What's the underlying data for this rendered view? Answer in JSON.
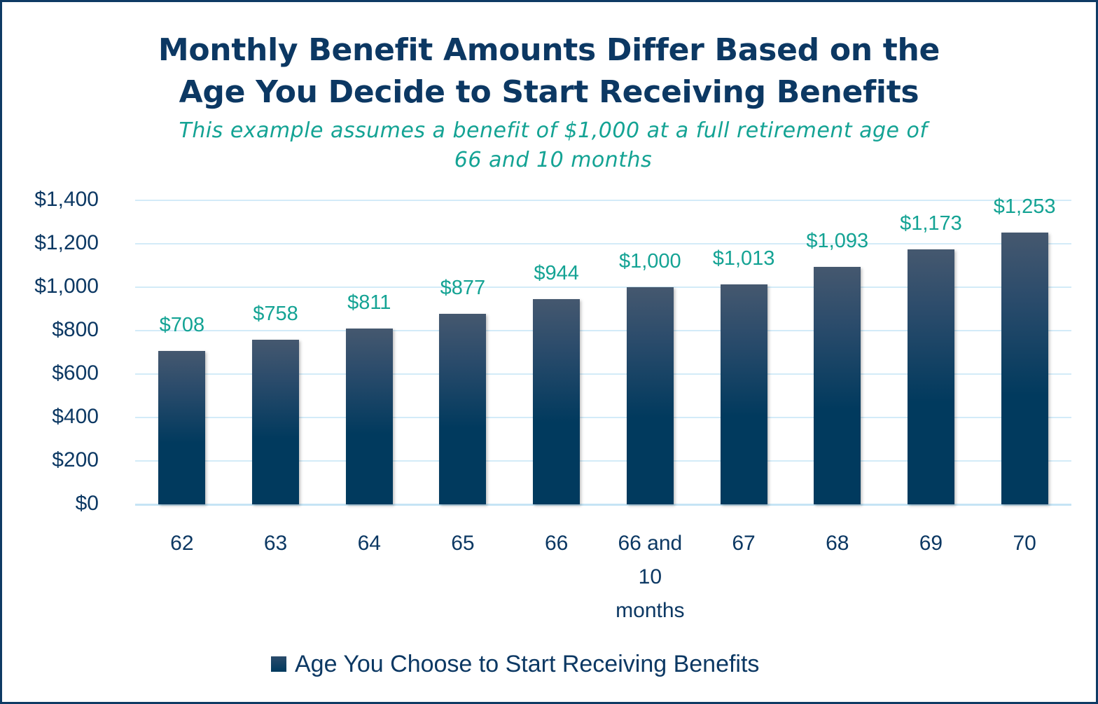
{
  "chart_data": {
    "type": "bar",
    "title": "Monthly Benefit Amounts Differ Based on the Age You Decide to Start Receiving Benefits",
    "title_lines": [
      "Monthly Benefit Amounts Differ Based on the",
      "Age You Decide to Start Receiving Benefits"
    ],
    "subtitle": "This example assumes a benefit of $1,000 at a full retirement age of 66 and 10 months",
    "subtitle_lines": [
      "This example assumes a benefit of $1,000 at a full retirement age of",
      "66 and 10 months"
    ],
    "categories": [
      "62",
      "63",
      "64",
      "65",
      "66",
      "66 and 10 months",
      "67",
      "68",
      "69",
      "70"
    ],
    "category_lines": [
      [
        "62"
      ],
      [
        "63"
      ],
      [
        "64"
      ],
      [
        "65"
      ],
      [
        "66"
      ],
      [
        "66 and",
        "10",
        "months"
      ],
      [
        "67"
      ],
      [
        "68"
      ],
      [
        "69"
      ],
      [
        "70"
      ]
    ],
    "series": [
      {
        "name": "Age You Choose to Start Receiving Benefits",
        "values": [
          708,
          758,
          811,
          877,
          944,
          1000,
          1013,
          1093,
          1173,
          1253
        ],
        "labels": [
          "$708",
          "$758",
          "$811",
          "$877",
          "$944",
          "$1,000",
          "$1,013",
          "$1,093",
          "$1,173",
          "$1,253"
        ]
      }
    ],
    "xlabel": "",
    "ylabel": "",
    "ylim": [
      0,
      1400
    ],
    "yticks": [
      0,
      200,
      400,
      600,
      800,
      1000,
      1200,
      1400
    ],
    "ytick_labels": [
      "$0",
      "$200",
      "$400",
      "$600",
      "$800",
      "$1,000",
      "$1,200",
      "$1,400"
    ],
    "grid": true,
    "legend_position": "bottom",
    "data_labels": true
  },
  "colors": {
    "title": "#0c3863",
    "subtitle": "#14a394",
    "bar_top": "#45586f",
    "bar_bottom": "#013a5e",
    "data_label": "#14a394",
    "gridline": "#d3ebf8",
    "border": "#0e3a64"
  },
  "legend": {
    "label": "Age You Choose to Start Receiving Benefits"
  }
}
